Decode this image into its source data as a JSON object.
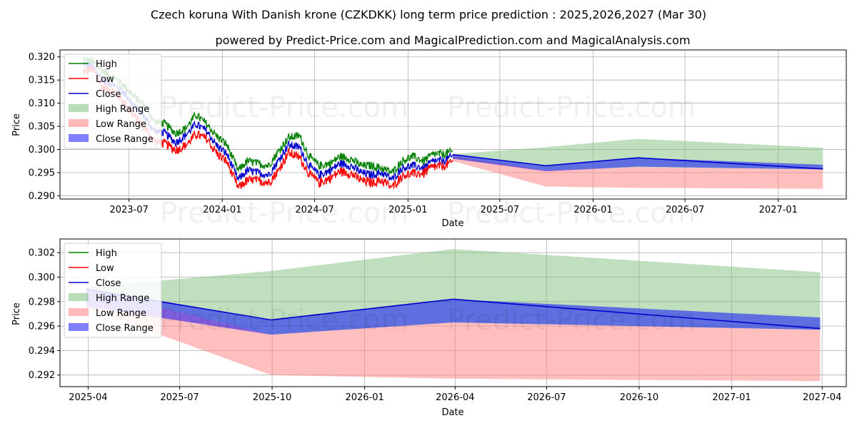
{
  "title": "Czech koruna With Danish krone (CZKDKK) long term price prediction : 2025,2026,2027 (Mar 30)",
  "subtitle": "powered by Predict-Price.com and MagicalPrediction.com and MagicalAnalysis.com",
  "watermarks": [
    "Predict-Price.com",
    "Predict-Price.com"
  ],
  "colors": {
    "high": "#008000",
    "low": "#ff0000",
    "close": "#0000cd",
    "high_range": "#7fc07f",
    "low_range": "#ff7f7f",
    "close_range": "#0000ff",
    "grid": "#b0b0b0"
  },
  "legend": [
    "High",
    "Low",
    "Close",
    "High Range",
    "Low Range",
    "Close Range"
  ],
  "chart_data": [
    {
      "type": "line",
      "name": "history-and-forecast",
      "xlabel": "Date",
      "ylabel": "Price",
      "xlim": [
        "2023-02-15",
        "2027-05-15"
      ],
      "ylim": [
        0.2893,
        0.3215
      ],
      "yticks": [
        0.29,
        0.295,
        0.3,
        0.305,
        0.31,
        0.315,
        0.32
      ],
      "ytick_labels": [
        "0.290",
        "0.295",
        "0.300",
        "0.305",
        "0.310",
        "0.315",
        "0.320"
      ],
      "xticks": [
        "2023-07-01",
        "2024-01-01",
        "2024-07-01",
        "2025-01-01",
        "2025-07-01",
        "2026-01-01",
        "2026-07-01",
        "2027-01-01"
      ],
      "xtick_labels": [
        "2023-07",
        "2024-01",
        "2024-07",
        "2025-01",
        "2025-07",
        "2026-01",
        "2026-07",
        "2027-01"
      ],
      "history": {
        "dates": [
          "2023-04-01",
          "2023-04-20",
          "2023-05-10",
          "2023-06-01",
          "2023-06-20",
          "2023-07-10",
          "2023-08-01",
          "2023-08-20",
          "2023-09-10",
          "2023-10-01",
          "2023-10-20",
          "2023-11-10",
          "2023-12-01",
          "2023-12-20",
          "2024-01-10",
          "2024-02-01",
          "2024-02-20",
          "2024-03-10",
          "2024-04-01",
          "2024-04-20",
          "2024-05-10",
          "2024-06-01",
          "2024-06-20",
          "2024-07-10",
          "2024-08-01",
          "2024-08-20",
          "2024-09-10",
          "2024-10-01",
          "2024-10-20",
          "2024-11-10",
          "2024-12-01",
          "2024-12-20",
          "2025-01-10",
          "2025-02-01",
          "2025-02-20",
          "2025-03-10",
          "2025-03-30"
        ],
        "high": [
          0.3195,
          0.319,
          0.317,
          0.3155,
          0.314,
          0.3115,
          0.3095,
          0.306,
          0.3055,
          0.3035,
          0.3045,
          0.3075,
          0.3055,
          0.303,
          0.301,
          0.2955,
          0.2975,
          0.297,
          0.2965,
          0.2995,
          0.3025,
          0.303,
          0.2985,
          0.2965,
          0.297,
          0.2985,
          0.298,
          0.2965,
          0.2965,
          0.296,
          0.295,
          0.2975,
          0.2985,
          0.2975,
          0.299,
          0.299,
          0.2995
        ],
        "low": [
          0.317,
          0.3175,
          0.3135,
          0.313,
          0.3105,
          0.3075,
          0.305,
          0.302,
          0.3015,
          0.3,
          0.301,
          0.3035,
          0.3025,
          0.2995,
          0.2975,
          0.292,
          0.2935,
          0.2935,
          0.293,
          0.2955,
          0.2995,
          0.2985,
          0.295,
          0.293,
          0.294,
          0.2955,
          0.295,
          0.2935,
          0.293,
          0.2935,
          0.292,
          0.2945,
          0.295,
          0.295,
          0.2965,
          0.2965,
          0.2975
        ],
        "close": [
          0.3185,
          0.318,
          0.315,
          0.314,
          0.3125,
          0.3095,
          0.307,
          0.304,
          0.3035,
          0.3015,
          0.303,
          0.3055,
          0.304,
          0.301,
          0.299,
          0.2935,
          0.2955,
          0.295,
          0.2945,
          0.2975,
          0.301,
          0.3005,
          0.2965,
          0.2945,
          0.2955,
          0.297,
          0.2965,
          0.295,
          0.2945,
          0.295,
          0.2935,
          0.296,
          0.2965,
          0.296,
          0.2975,
          0.2975,
          0.2985
        ]
      },
      "forecast": {
        "dates": [
          "2025-03-30",
          "2025-09-30",
          "2026-03-30",
          "2027-03-30"
        ],
        "high_range": [
          [
            0.298,
            0.299
          ],
          [
            0.2955,
            0.3005
          ],
          [
            0.2962,
            0.3023
          ],
          [
            0.2957,
            0.3004
          ]
        ],
        "low_range": [
          [
            0.2975,
            0.2985
          ],
          [
            0.292,
            0.2955
          ],
          [
            0.2917,
            0.2962
          ],
          [
            0.2915,
            0.2957
          ]
        ],
        "close_range": [
          [
            0.298,
            0.299
          ],
          [
            0.2953,
            0.2965
          ],
          [
            0.2963,
            0.2982
          ],
          [
            0.2957,
            0.2967
          ]
        ],
        "close": [
          0.2989,
          0.2965,
          0.2982,
          0.2958
        ]
      }
    },
    {
      "type": "area",
      "name": "forecast-zoom",
      "xlabel": "Date",
      "ylabel": "Price",
      "xlim": [
        "2025-03-04",
        "2027-04-25"
      ],
      "ylim": [
        0.29105,
        0.30312
      ],
      "yticks": [
        0.292,
        0.294,
        0.296,
        0.298,
        0.3,
        0.302
      ],
      "ytick_labels": [
        "0.292",
        "0.294",
        "0.296",
        "0.298",
        "0.300",
        "0.302"
      ],
      "xticks": [
        "2025-04-01",
        "2025-07-01",
        "2025-10-01",
        "2026-01-01",
        "2026-04-01",
        "2026-07-01",
        "2026-10-01",
        "2027-01-01",
        "2027-04-01"
      ],
      "xtick_labels": [
        "2025-04",
        "2025-07",
        "2025-10",
        "2026-01",
        "2026-04",
        "2026-07",
        "2026-10",
        "2027-01",
        "2027-04"
      ],
      "forecast": {
        "dates": [
          "2025-03-30",
          "2025-09-30",
          "2026-03-30",
          "2027-03-30"
        ],
        "high_range": [
          [
            0.299,
            0.2992
          ],
          [
            0.2953,
            0.3005
          ],
          [
            0.2963,
            0.3023
          ],
          [
            0.2957,
            0.3004
          ]
        ],
        "low_range": [
          [
            0.2975,
            0.299
          ],
          [
            0.292,
            0.2953
          ],
          [
            0.2917,
            0.2963
          ],
          [
            0.2915,
            0.2957
          ]
        ],
        "close_range": [
          [
            0.2976,
            0.2991
          ],
          [
            0.2953,
            0.2965
          ],
          [
            0.2963,
            0.2982
          ],
          [
            0.2957,
            0.2967
          ]
        ],
        "close": [
          0.299,
          0.2965,
          0.2982,
          0.2958
        ]
      }
    }
  ]
}
